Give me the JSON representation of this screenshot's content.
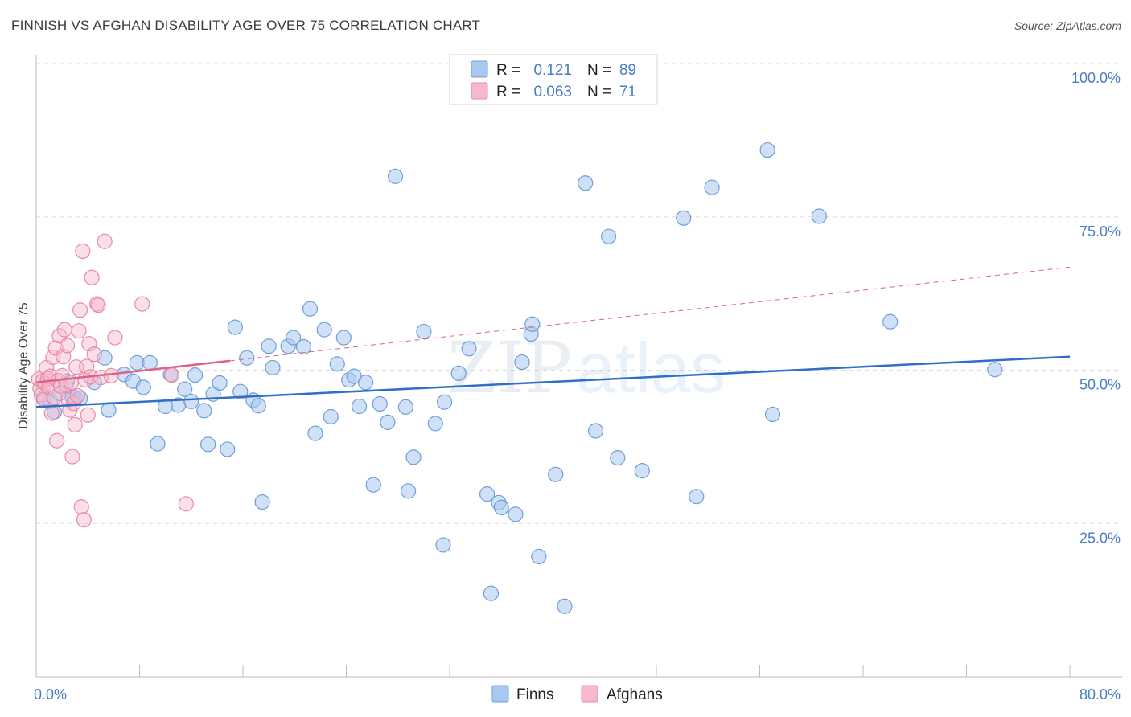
{
  "title": "FINNISH VS AFGHAN DISABILITY AGE OVER 75 CORRELATION CHART",
  "source": "Source: ZipAtlas.com",
  "watermark": {
    "zip": "ZIP",
    "atlas": "atlas"
  },
  "legend_top": [
    {
      "r_label": "R =",
      "r_value": "0.121",
      "n_label": "N =",
      "n_value": "89"
    },
    {
      "r_label": "R =",
      "r_value": "0.063",
      "n_label": "N =",
      "n_value": "71"
    }
  ],
  "legend_bottom": [
    "Finns",
    "Afghans"
  ],
  "colors": {
    "finns_fill": "#a9c8f0",
    "finns_stroke": "#6f9fd8",
    "finns_line": "#2f6fc6",
    "afghans_fill": "#f6b8cb",
    "afghans_stroke": "#e98aa8",
    "afghans_line": "#e0608a",
    "label": "#4a7cc7",
    "grid": "#dddddd"
  },
  "chart_data": {
    "type": "scatter",
    "title": "FINNISH VS AFGHAN DISABILITY AGE OVER 75 CORRELATION CHART",
    "xlabel": "",
    "ylabel": "Disability Age Over 75",
    "xlim": [
      0,
      80
    ],
    "ylim": [
      0,
      105
    ],
    "x_tick_labels": [
      "0.0%",
      "80.0%"
    ],
    "y_ticks": [
      25,
      50,
      75,
      100
    ],
    "y_tick_labels": [
      "25.0%",
      "50.0%",
      "75.0%",
      "100.0%"
    ],
    "legend_position": "top-center",
    "series": [
      {
        "name": "Finns",
        "R": 0.121,
        "N": 89,
        "trend": {
          "x": [
            0,
            80
          ],
          "y": [
            44.0,
            52.2
          ],
          "style": "solid"
        },
        "points": [
          [
            0.6,
            45.5
          ],
          [
            1.1,
            44.9
          ],
          [
            1.4,
            43.2
          ],
          [
            1.8,
            46.2
          ],
          [
            2.4,
            48.2
          ],
          [
            2.8,
            45.6
          ],
          [
            3.0,
            45.5
          ],
          [
            3.4,
            45.4
          ],
          [
            4.5,
            48.0
          ],
          [
            5.3,
            52.0
          ],
          [
            5.6,
            43.5
          ],
          [
            6.8,
            49.3
          ],
          [
            7.5,
            48.2
          ],
          [
            7.8,
            51.2
          ],
          [
            8.3,
            47.2
          ],
          [
            8.8,
            51.2
          ],
          [
            9.4,
            38.0
          ],
          [
            10.0,
            44.1
          ],
          [
            10.4,
            49.3
          ],
          [
            11.0,
            44.3
          ],
          [
            11.5,
            46.9
          ],
          [
            12.0,
            44.9
          ],
          [
            12.3,
            49.2
          ],
          [
            13.0,
            43.4
          ],
          [
            13.3,
            37.9
          ],
          [
            13.7,
            46.1
          ],
          [
            14.2,
            47.9
          ],
          [
            14.8,
            37.1
          ],
          [
            15.4,
            57.0
          ],
          [
            15.8,
            46.5
          ],
          [
            16.3,
            52.0
          ],
          [
            16.8,
            45.1
          ],
          [
            17.2,
            44.2
          ],
          [
            17.5,
            28.5
          ],
          [
            18.0,
            53.9
          ],
          [
            18.3,
            50.4
          ],
          [
            19.5,
            53.9
          ],
          [
            19.9,
            55.3
          ],
          [
            20.7,
            53.8
          ],
          [
            21.2,
            60.0
          ],
          [
            21.6,
            39.7
          ],
          [
            22.3,
            56.6
          ],
          [
            22.8,
            42.4
          ],
          [
            23.3,
            51.0
          ],
          [
            23.8,
            55.3
          ],
          [
            24.2,
            48.4
          ],
          [
            24.6,
            49.0
          ],
          [
            25.0,
            44.1
          ],
          [
            25.5,
            48.0
          ],
          [
            26.1,
            31.3
          ],
          [
            26.6,
            44.5
          ],
          [
            27.2,
            41.5
          ],
          [
            27.8,
            81.6
          ],
          [
            28.6,
            44.0
          ],
          [
            28.8,
            30.3
          ],
          [
            29.2,
            35.8
          ],
          [
            30.0,
            56.3
          ],
          [
            30.9,
            41.3
          ],
          [
            31.5,
            21.5
          ],
          [
            31.6,
            44.8
          ],
          [
            32.7,
            49.5
          ],
          [
            33.5,
            53.5
          ],
          [
            34.9,
            29.8
          ],
          [
            35.2,
            13.6
          ],
          [
            35.8,
            28.4
          ],
          [
            36.0,
            27.6
          ],
          [
            37.1,
            26.5
          ],
          [
            37.6,
            51.3
          ],
          [
            38.3,
            55.9
          ],
          [
            38.4,
            57.5
          ],
          [
            38.9,
            19.6
          ],
          [
            40.2,
            33.0
          ],
          [
            40.9,
            11.5
          ],
          [
            42.5,
            80.5
          ],
          [
            43.3,
            40.1
          ],
          [
            44.3,
            71.8
          ],
          [
            45.0,
            35.7
          ],
          [
            46.9,
            33.6
          ],
          [
            50.1,
            74.8
          ],
          [
            51.1,
            29.4
          ],
          [
            52.3,
            79.8
          ],
          [
            56.6,
            85.9
          ],
          [
            57.0,
            42.8
          ],
          [
            60.6,
            75.1
          ],
          [
            66.1,
            57.9
          ],
          [
            74.2,
            50.1
          ]
        ]
      },
      {
        "name": "Afghans",
        "R": 0.063,
        "N": 71,
        "trend": {
          "x": [
            0,
            80
          ],
          "y": [
            48.0,
            66.8
          ],
          "solid_until": 15
        },
        "points": [
          [
            0.2,
            48.5
          ],
          [
            0.3,
            47.0
          ],
          [
            0.4,
            46.0
          ],
          [
            0.5,
            48.2
          ],
          [
            0.6,
            45.2
          ],
          [
            0.7,
            47.8
          ],
          [
            0.8,
            50.4
          ],
          [
            0.9,
            48.6
          ],
          [
            1.0,
            47.2
          ],
          [
            1.1,
            49.0
          ],
          [
            1.2,
            43.0
          ],
          [
            1.3,
            52.1
          ],
          [
            1.4,
            45.5
          ],
          [
            1.5,
            53.6
          ],
          [
            1.6,
            38.5
          ],
          [
            1.7,
            48.3
          ],
          [
            1.8,
            55.6
          ],
          [
            1.9,
            47.4
          ],
          [
            2.0,
            49.1
          ],
          [
            2.1,
            52.2
          ],
          [
            2.2,
            56.6
          ],
          [
            2.3,
            47.6
          ],
          [
            2.4,
            54.0
          ],
          [
            2.5,
            45.2
          ],
          [
            2.6,
            43.5
          ],
          [
            2.7,
            48.0
          ],
          [
            2.8,
            35.9
          ],
          [
            2.9,
            44.6
          ],
          [
            3.0,
            41.1
          ],
          [
            3.1,
            50.5
          ],
          [
            3.2,
            45.8
          ],
          [
            3.3,
            56.4
          ],
          [
            3.4,
            59.8
          ],
          [
            3.5,
            27.7
          ],
          [
            3.6,
            69.4
          ],
          [
            3.7,
            25.6
          ],
          [
            3.8,
            48.4
          ],
          [
            3.9,
            50.6
          ],
          [
            4.0,
            42.7
          ],
          [
            4.1,
            54.3
          ],
          [
            4.2,
            48.9
          ],
          [
            4.3,
            65.1
          ],
          [
            4.5,
            52.6
          ],
          [
            4.7,
            60.8
          ],
          [
            4.8,
            60.6
          ],
          [
            5.0,
            48.8
          ],
          [
            5.3,
            71.0
          ],
          [
            5.8,
            49.1
          ],
          [
            6.1,
            55.3
          ],
          [
            8.2,
            60.8
          ],
          [
            10.5,
            49.2
          ],
          [
            11.6,
            28.2
          ]
        ]
      }
    ]
  }
}
